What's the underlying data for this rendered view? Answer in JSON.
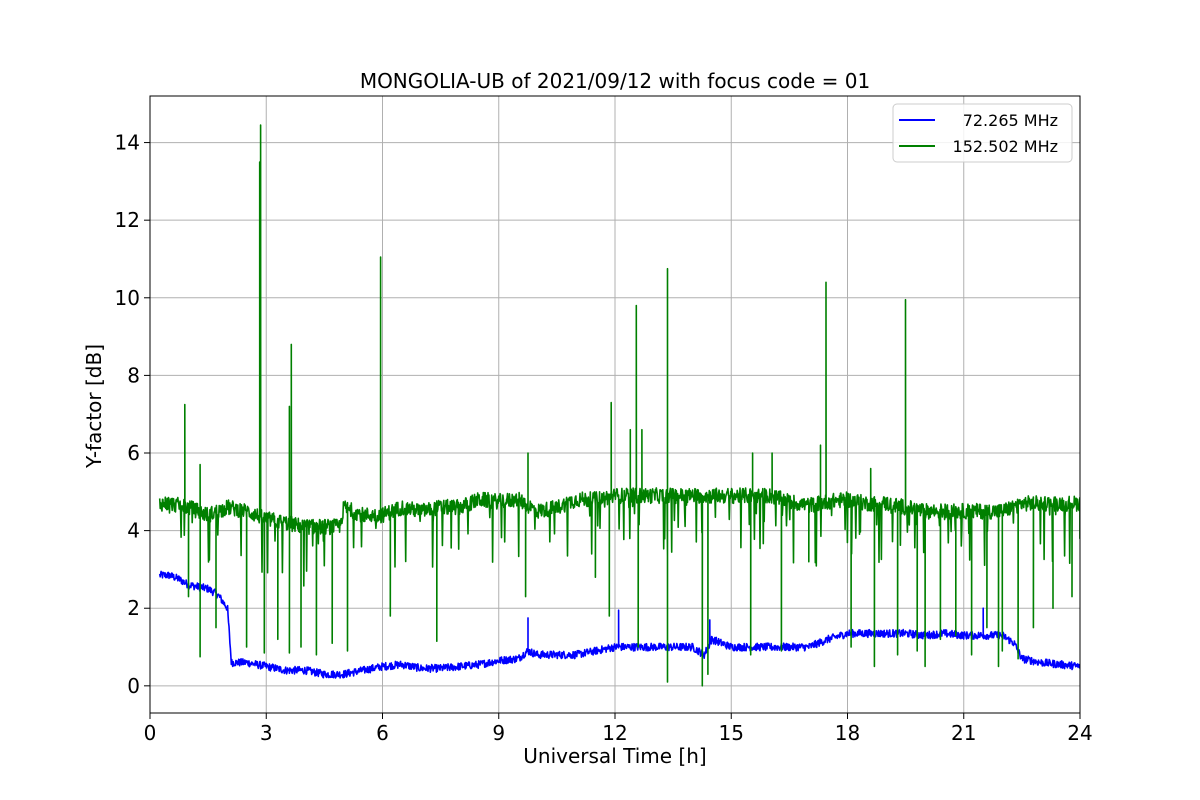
{
  "chart_data": {
    "type": "line",
    "title": "MONGOLIA-UB of 2021/09/12 with focus code = 01",
    "xlabel": "Universal Time [h]",
    "ylabel": "Y-factor [dB]",
    "xlim": [
      0,
      24
    ],
    "ylim": [
      -0.7,
      15.2
    ],
    "xticks": [
      0,
      3,
      6,
      9,
      12,
      15,
      18,
      21,
      24
    ],
    "yticks": [
      0,
      2,
      4,
      6,
      8,
      10,
      12,
      14
    ],
    "grid": true,
    "legend_position": "top-right",
    "series": [
      {
        "name": "72.265 MHz",
        "color": "#0000ff",
        "x": [
          0.25,
          0.5,
          0.75,
          1.0,
          1.25,
          1.5,
          1.75,
          2.0,
          2.1,
          2.25,
          2.5,
          3.0,
          3.5,
          4.0,
          4.5,
          5.0,
          5.5,
          6.0,
          6.5,
          7.0,
          7.5,
          8.0,
          8.5,
          9.0,
          9.5,
          9.75,
          10.0,
          10.5,
          11.0,
          11.5,
          12.0,
          12.5,
          13.0,
          13.5,
          14.0,
          14.3,
          14.5,
          15.0,
          15.5,
          16.0,
          16.5,
          17.0,
          17.5,
          18.0,
          18.5,
          19.0,
          19.5,
          20.0,
          20.5,
          21.0,
          21.5,
          22.0,
          22.3,
          22.5,
          23.0,
          23.5,
          24.0
        ],
        "y": [
          2.85,
          2.85,
          2.75,
          2.6,
          2.55,
          2.5,
          2.35,
          2.0,
          0.6,
          0.6,
          0.6,
          0.5,
          0.4,
          0.4,
          0.3,
          0.3,
          0.4,
          0.5,
          0.55,
          0.45,
          0.45,
          0.5,
          0.55,
          0.65,
          0.7,
          0.9,
          0.8,
          0.8,
          0.8,
          0.9,
          1.0,
          1.0,
          1.0,
          1.0,
          1.0,
          0.8,
          1.2,
          1.0,
          1.0,
          1.0,
          1.0,
          1.0,
          1.2,
          1.35,
          1.35,
          1.35,
          1.35,
          1.3,
          1.35,
          1.3,
          1.3,
          1.3,
          1.1,
          0.7,
          0.6,
          0.55,
          0.5
        ],
        "noise": 0.1,
        "spikes": [
          [
            9.75,
            1.75
          ],
          [
            12.1,
            1.95
          ],
          [
            14.45,
            1.7
          ],
          [
            21.5,
            2.0
          ]
        ]
      },
      {
        "name": "152.502 MHz",
        "color": "#008000",
        "x": [
          0.25,
          0.5,
          1.0,
          1.5,
          2.0,
          2.5,
          3.0,
          3.5,
          4.0,
          4.5,
          4.9,
          5.0,
          5.5,
          6.0,
          6.5,
          7.0,
          7.5,
          8.0,
          8.5,
          9.0,
          9.5,
          10.0,
          10.5,
          11.0,
          11.5,
          12.0,
          12.5,
          13.0,
          13.5,
          14.0,
          14.5,
          15.0,
          15.5,
          16.0,
          16.5,
          17.0,
          17.5,
          18.0,
          18.5,
          19.0,
          19.5,
          20.0,
          20.5,
          21.0,
          21.5,
          22.0,
          22.5,
          23.0,
          23.5,
          24.0
        ],
        "y": [
          4.7,
          4.7,
          4.6,
          4.4,
          4.6,
          4.5,
          4.3,
          4.2,
          4.1,
          4.1,
          4.1,
          4.6,
          4.4,
          4.4,
          4.6,
          4.5,
          4.6,
          4.6,
          4.8,
          4.75,
          4.8,
          4.5,
          4.6,
          4.8,
          4.8,
          4.9,
          4.9,
          4.9,
          4.9,
          4.9,
          4.9,
          4.9,
          4.9,
          4.9,
          4.75,
          4.65,
          4.75,
          4.8,
          4.7,
          4.7,
          4.6,
          4.5,
          4.5,
          4.5,
          4.5,
          4.5,
          4.7,
          4.7,
          4.7,
          4.7
        ],
        "noise": 0.2,
        "spikes": [
          [
            0.9,
            7.25
          ],
          [
            1.3,
            5.7
          ],
          [
            2.85,
            14.45
          ],
          [
            2.83,
            13.5
          ],
          [
            3.6,
            7.2
          ],
          [
            3.65,
            8.8
          ],
          [
            5.95,
            11.05
          ],
          [
            9.75,
            6.0
          ],
          [
            11.9,
            7.3
          ],
          [
            12.55,
            9.8
          ],
          [
            12.4,
            6.6
          ],
          [
            12.7,
            6.6
          ],
          [
            13.35,
            10.75
          ],
          [
            15.55,
            6.0
          ],
          [
            16.05,
            6.0
          ],
          [
            17.3,
            6.2
          ],
          [
            17.45,
            10.4
          ],
          [
            18.6,
            5.6
          ],
          [
            19.5,
            9.95
          ]
        ],
        "dips": [
          [
            1.0,
            2.3
          ],
          [
            1.3,
            0.75
          ],
          [
            1.7,
            1.5
          ],
          [
            2.5,
            1.0
          ],
          [
            2.95,
            0.85
          ],
          [
            3.3,
            1.2
          ],
          [
            3.6,
            0.85
          ],
          [
            3.9,
            1.0
          ],
          [
            4.3,
            0.8
          ],
          [
            4.7,
            1.1
          ],
          [
            5.1,
            0.9
          ],
          [
            6.2,
            1.8
          ],
          [
            7.4,
            1.15
          ],
          [
            9.7,
            2.3
          ],
          [
            11.5,
            2.8
          ],
          [
            11.85,
            1.8
          ],
          [
            12.6,
            1.0
          ],
          [
            13.35,
            0.1
          ],
          [
            14.25,
            0.0
          ],
          [
            14.4,
            0.3
          ],
          [
            15.5,
            0.8
          ],
          [
            16.3,
            0.9
          ],
          [
            17.0,
            3.2
          ],
          [
            18.1,
            1.0
          ],
          [
            18.7,
            0.5
          ],
          [
            19.3,
            0.8
          ],
          [
            19.8,
            0.9
          ],
          [
            20.0,
            0.5
          ],
          [
            20.4,
            1.2
          ],
          [
            20.8,
            1.3
          ],
          [
            21.2,
            0.8
          ],
          [
            21.6,
            1.5
          ],
          [
            21.9,
            0.5
          ],
          [
            22.0,
            0.9
          ],
          [
            22.4,
            0.7
          ],
          [
            22.8,
            1.5
          ],
          [
            23.3,
            2.0
          ],
          [
            23.8,
            2.3
          ],
          [
            24.0,
            3.8
          ]
        ]
      }
    ]
  }
}
